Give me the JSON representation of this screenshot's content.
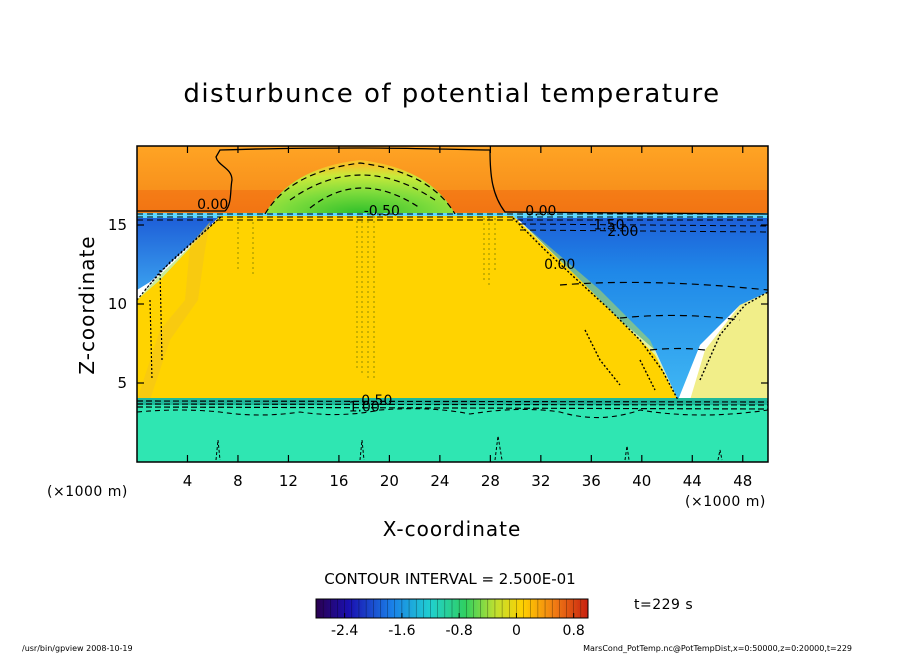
{
  "chart_data": {
    "type": "heatmap",
    "title": "disturbunce of potential temperature",
    "xlabel": "X-coordinate",
    "ylabel": "Z-coordinate",
    "x_unit_left": "(×1000 m)",
    "x_unit_right": "(×1000 m)",
    "xlim": [
      0,
      50
    ],
    "ylim": [
      0,
      20
    ],
    "x_ticks": [
      4,
      8,
      12,
      16,
      20,
      24,
      28,
      32,
      36,
      40,
      44,
      48
    ],
    "y_ticks": [
      5,
      10,
      15
    ],
    "contour_labels": [
      {
        "text": "0.00",
        "x": 6.0,
        "y": 16.0
      },
      {
        "text": "-0.50",
        "x": 19.4,
        "y": 15.6
      },
      {
        "text": "0.00",
        "x": 32.0,
        "y": 15.6
      },
      {
        "text": "1.50",
        "x": 37.4,
        "y": 14.7
      },
      {
        "text": "2.00",
        "x": 38.5,
        "y": 14.3
      },
      {
        "text": "0.00",
        "x": 33.5,
        "y": 12.2
      },
      {
        "text": "0.50",
        "x": 19.0,
        "y": 3.6
      },
      {
        "text": "1.00",
        "x": 18.0,
        "y": 3.2
      }
    ],
    "contour_interval": "CONTOUR INTERVAL = 2.500E-01",
    "time_label": "t=229 s",
    "colorbar": {
      "range": [
        -2.8,
        1.0
      ],
      "tick_labels": [
        "-2.4",
        "-1.6",
        "-0.8",
        "0",
        "0.8"
      ],
      "tick_values": [
        -2.4,
        -1.6,
        -0.8,
        0,
        0.8
      ]
    },
    "grid": false
  },
  "footer": {
    "left": "/usr/bin/gpview   2008-10-19",
    "right": "MarsCond_PotTemp.nc@PotTempDist,x=0:50000,z=0:20000,t=229"
  },
  "colors": {
    "top_layer": "#f58b1a",
    "plume": "#ffd200",
    "cold_blue": "#1a7ae0",
    "lower_layer": "#2ee6b4",
    "green_core": "#5cd83a"
  }
}
